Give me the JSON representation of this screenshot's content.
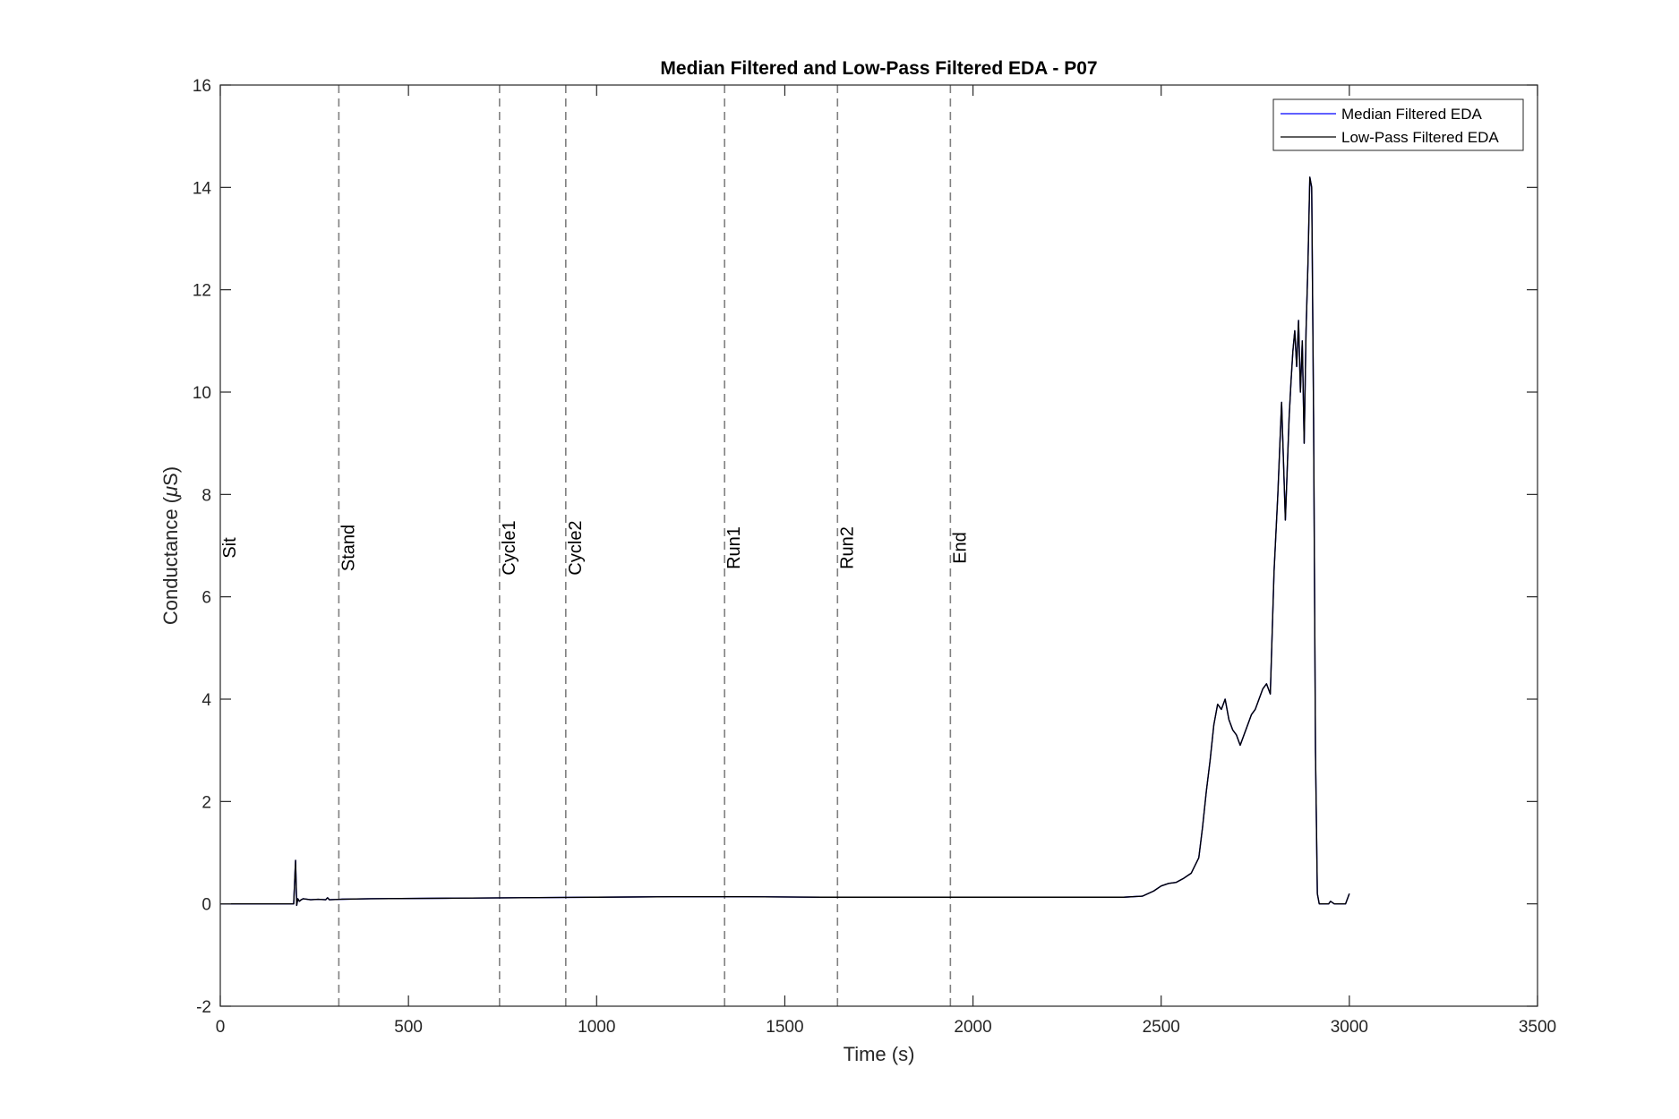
{
  "chart_data": {
    "type": "line",
    "title": "Median Filtered and Low-Pass Filtered EDA - P07",
    "xlabel": "Time (s)",
    "ylabel_prefix": "Conductance (",
    "ylabel_symbol": "μ",
    "ylabel_suffix": "S)",
    "xlim": [
      0,
      3500
    ],
    "ylim": [
      -2,
      16
    ],
    "xticks": [
      0,
      500,
      1000,
      1500,
      2000,
      2500,
      3000,
      3500
    ],
    "yticks": [
      -2,
      0,
      2,
      4,
      6,
      8,
      10,
      12,
      14,
      16
    ],
    "grid": false,
    "legend_position": "top-right",
    "colors": {
      "median": "#0000ff",
      "lowpass": "#000000",
      "event_line": "#808080",
      "axes": "#262626"
    },
    "events": [
      {
        "label": "Sit",
        "x": 0
      },
      {
        "label": "Stand",
        "x": 315
      },
      {
        "label": "Cycle1",
        "x": 742
      },
      {
        "label": "Cycle2",
        "x": 918
      },
      {
        "label": "Run1",
        "x": 1340
      },
      {
        "label": "Run2",
        "x": 1640
      },
      {
        "label": "End",
        "x": 1940
      }
    ],
    "series": [
      {
        "name": "Median Filtered EDA",
        "color": "#0000ff",
        "x": [
          0,
          195,
          200,
          203,
          206,
          210,
          215,
          220,
          240,
          260,
          280,
          285,
          290,
          320,
          400,
          600,
          800,
          1000,
          1200,
          1400,
          1600,
          1800,
          2000,
          2200,
          2400,
          2450,
          2480,
          2500,
          2520,
          2540,
          2560,
          2580,
          2600,
          2610,
          2620,
          2630,
          2640,
          2650,
          2660,
          2670,
          2680,
          2690,
          2700,
          2710,
          2720,
          2730,
          2740,
          2750,
          2760,
          2770,
          2780,
          2790,
          2800,
          2810,
          2820,
          2830,
          2840,
          2845,
          2850,
          2855,
          2860,
          2865,
          2870,
          2875,
          2880,
          2885,
          2890,
          2895,
          2900,
          2905,
          2910,
          2915,
          2920,
          2925,
          2930,
          2935,
          2940,
          2945,
          2950,
          2960,
          2990,
          3000
        ],
        "values": [
          0,
          0,
          0.85,
          -0.03,
          0.1,
          0.05,
          0.08,
          0.1,
          0.08,
          0.09,
          0.08,
          0.12,
          0.08,
          0.09,
          0.1,
          0.11,
          0.12,
          0.13,
          0.14,
          0.14,
          0.13,
          0.13,
          0.13,
          0.13,
          0.13,
          0.15,
          0.25,
          0.35,
          0.4,
          0.42,
          0.5,
          0.6,
          0.9,
          1.5,
          2.2,
          2.8,
          3.5,
          3.9,
          3.8,
          4.0,
          3.6,
          3.4,
          3.3,
          3.1,
          3.3,
          3.5,
          3.7,
          3.8,
          4.0,
          4.2,
          4.3,
          4.1,
          6.5,
          8.0,
          9.8,
          7.5,
          9.5,
          10.2,
          10.8,
          11.2,
          10.5,
          11.4,
          10.0,
          11.0,
          9.0,
          11.2,
          12.5,
          14.2,
          14.0,
          9.5,
          3.0,
          0.2,
          0,
          0,
          0,
          0,
          0,
          0,
          0.05,
          0,
          0,
          0.2
        ]
      },
      {
        "name": "Low-Pass Filtered EDA",
        "color": "#000000",
        "x": [
          0,
          195,
          200,
          203,
          206,
          210,
          215,
          220,
          240,
          260,
          280,
          285,
          290,
          320,
          400,
          600,
          800,
          1000,
          1200,
          1400,
          1600,
          1800,
          2000,
          2200,
          2400,
          2450,
          2480,
          2500,
          2520,
          2540,
          2560,
          2580,
          2600,
          2610,
          2620,
          2630,
          2640,
          2650,
          2660,
          2670,
          2680,
          2690,
          2700,
          2710,
          2720,
          2730,
          2740,
          2750,
          2760,
          2770,
          2780,
          2790,
          2800,
          2810,
          2820,
          2830,
          2840,
          2845,
          2850,
          2855,
          2860,
          2865,
          2870,
          2875,
          2880,
          2885,
          2890,
          2895,
          2900,
          2905,
          2910,
          2915,
          2920,
          2925,
          2930,
          2935,
          2940,
          2945,
          2950,
          2960,
          2990,
          3000
        ],
        "values": [
          0,
          0,
          0.85,
          -0.03,
          0.1,
          0.05,
          0.08,
          0.1,
          0.08,
          0.09,
          0.08,
          0.12,
          0.08,
          0.09,
          0.1,
          0.11,
          0.12,
          0.13,
          0.14,
          0.14,
          0.13,
          0.13,
          0.13,
          0.13,
          0.13,
          0.15,
          0.25,
          0.35,
          0.4,
          0.42,
          0.5,
          0.6,
          0.9,
          1.5,
          2.2,
          2.8,
          3.5,
          3.9,
          3.8,
          4.0,
          3.6,
          3.4,
          3.3,
          3.1,
          3.3,
          3.5,
          3.7,
          3.8,
          4.0,
          4.2,
          4.3,
          4.1,
          6.5,
          8.0,
          9.8,
          7.5,
          9.5,
          10.2,
          10.8,
          11.2,
          10.5,
          11.4,
          10.0,
          11.0,
          9.0,
          11.2,
          12.5,
          14.2,
          14.0,
          9.5,
          3.0,
          0.2,
          0,
          0,
          0,
          0,
          0,
          0,
          0.05,
          0,
          0,
          0.2
        ]
      }
    ]
  }
}
